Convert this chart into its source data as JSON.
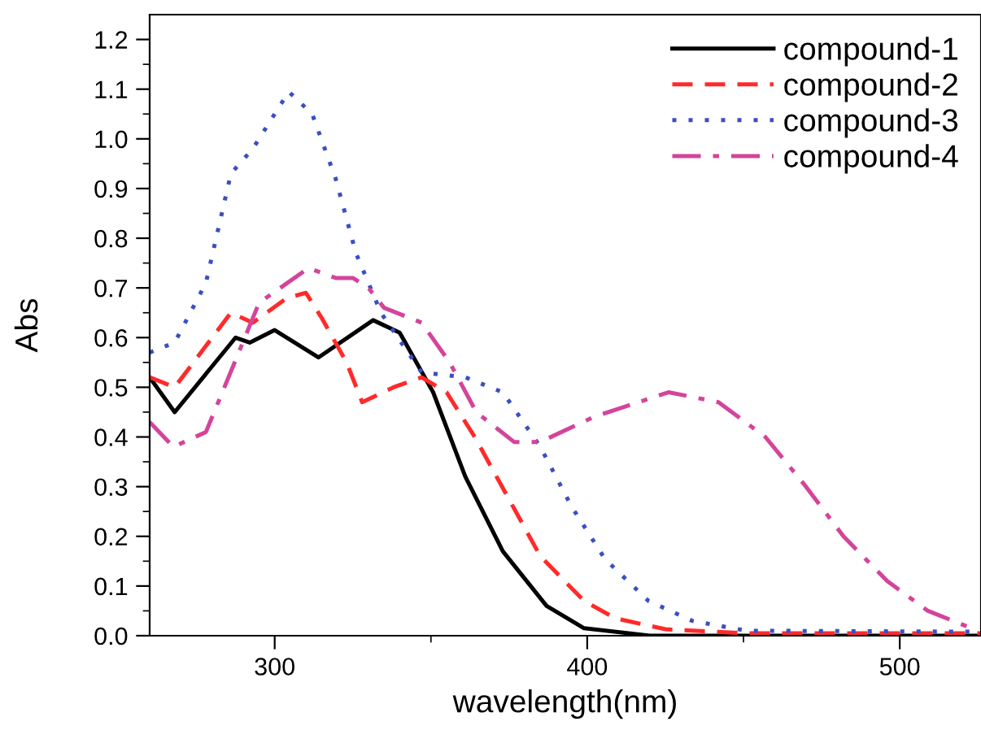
{
  "chart_data": {
    "type": "line",
    "xlabel": "wavelength(nm)",
    "ylabel": "Abs",
    "xlim": [
      260,
      526
    ],
    "ylim": [
      0,
      1.25
    ],
    "xticks": [
      300,
      {
        "value": 350,
        "label": null
      },
      400,
      {
        "value": 450,
        "label": null
      },
      500
    ],
    "yticks": [
      {
        "value": 0,
        "label": "0.0"
      },
      {
        "value": 0.05,
        "label": null
      },
      0.1,
      {
        "value": 0.15,
        "label": null
      },
      0.2,
      {
        "value": 0.25,
        "label": null
      },
      0.3,
      {
        "value": 0.35,
        "label": null
      },
      0.4,
      {
        "value": 0.45,
        "label": null
      },
      0.5,
      {
        "value": 0.55,
        "label": null
      },
      0.6,
      {
        "value": 0.65,
        "label": null
      },
      0.7,
      {
        "value": 0.75,
        "label": null
      },
      0.8,
      {
        "value": 0.85,
        "label": null
      },
      0.9,
      {
        "value": 0.95,
        "label": null
      },
      {
        "value": 1,
        "label": "1.0"
      },
      {
        "value": 1.05,
        "label": null
      },
      1.1,
      {
        "value": 1.15,
        "label": null
      },
      1.2
    ],
    "grid": false,
    "legend": "top right",
    "marker": "none",
    "series": [
      {
        "name": "compound-1",
        "color": "#000000",
        "line_style": "solid",
        "x": [
          260,
          268,
          287.5,
          292,
          300,
          314,
          331.5,
          340,
          350.7,
          361,
          373,
          387,
          399,
          420,
          526
        ],
        "values": [
          0.52,
          0.45,
          0.6,
          0.59,
          0.615,
          0.56,
          0.635,
          0.61,
          0.49,
          0.32,
          0.17,
          0.06,
          0.015,
          0.0,
          0.0
        ]
      },
      {
        "name": "compound-2",
        "color": "#ff2a2a",
        "line_style": "dashed",
        "x": [
          260,
          268,
          286,
          293,
          304,
          310,
          315,
          323,
          328,
          338,
          347,
          355,
          364,
          374.5,
          385,
          399,
          409,
          425,
          450,
          526
        ],
        "values": [
          0.52,
          0.5,
          0.65,
          0.63,
          0.68,
          0.69,
          0.64,
          0.55,
          0.47,
          0.5,
          0.52,
          0.49,
          0.4,
          0.28,
          0.16,
          0.07,
          0.035,
          0.013,
          0.005,
          0.005
        ]
      },
      {
        "name": "compound-3",
        "color": "#3a4fc0",
        "line_style": "dotted",
        "x": [
          260,
          268,
          278,
          286,
          293,
          304.5,
          312,
          319.5,
          326,
          334,
          347,
          361,
          373,
          385,
          395,
          405.6,
          419.6,
          433.6,
          451,
          526
        ],
        "values": [
          0.57,
          0.59,
          0.71,
          0.93,
          0.98,
          1.095,
          1.05,
          0.92,
          0.77,
          0.65,
          0.53,
          0.52,
          0.49,
          0.38,
          0.26,
          0.155,
          0.07,
          0.03,
          0.01,
          0.008
        ]
      },
      {
        "name": "compound-4",
        "color": "#d4449a",
        "line_style": "dashdot",
        "x": [
          260,
          267.6,
          278,
          288.5,
          295,
          310.8,
          319.5,
          325,
          330,
          335,
          347,
          356,
          364.5,
          376.6,
          385,
          402,
          426,
          442,
          457,
          470,
          482,
          496,
          509,
          523
        ],
        "values": [
          0.43,
          0.38,
          0.41,
          0.57,
          0.67,
          0.74,
          0.72,
          0.72,
          0.7,
          0.66,
          0.63,
          0.55,
          0.45,
          0.39,
          0.39,
          0.44,
          0.49,
          0.47,
          0.4,
          0.3,
          0.2,
          0.11,
          0.05,
          0.015
        ]
      }
    ]
  }
}
